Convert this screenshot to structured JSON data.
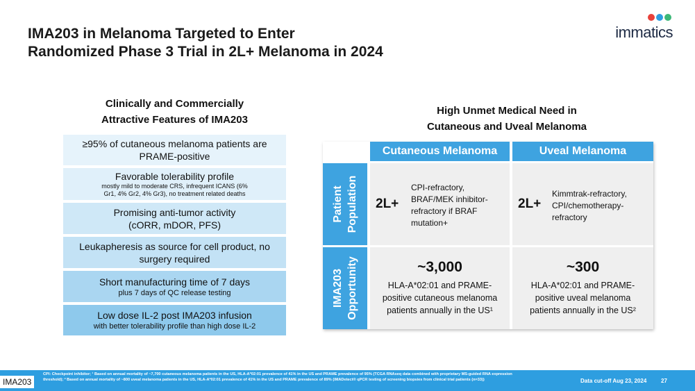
{
  "title": {
    "line1": "IMA203 in Melanoma Targeted to Enter",
    "line2": "Randomized Phase 3 Trial in 2L+ Melanoma in 2024"
  },
  "logo": {
    "text": "immatics",
    "dot_colors": [
      "#e8413b",
      "#2e9ee0",
      "#3cb878"
    ]
  },
  "left": {
    "title_line1": "Clinically and Commercially",
    "title_line2": "Attractive Features of IMA203",
    "features": [
      {
        "main": "≥95% of cutaneous melanoma patients are PRAME-positive",
        "sub": "",
        "bg": "#e6f3fb"
      },
      {
        "main": "Favorable tolerability profile",
        "sub": "mostly mild to moderate CRS, infrequent ICANS (6% Gr1, 4% Gr2, 4% Gr3), no treatment related deaths",
        "bg": "#e0f0fa"
      },
      {
        "main": "Promising anti-tumor activity (cORR, mDOR, PFS)",
        "sub": "",
        "bg": "#cfe8f7"
      },
      {
        "main": "Leukapheresis as source for cell product, no surgery required",
        "sub": "",
        "bg": "#c3e2f5"
      },
      {
        "main": "Short manufacturing time of 7 days",
        "sub": "plus 7 days of QC release testing",
        "bg": "#aad6f1"
      },
      {
        "main": "Low dose IL-2 post IMA203 infusion",
        "sub": "with better tolerability profile than high dose IL-2",
        "bg": "#8ec9ec"
      }
    ]
  },
  "right": {
    "title_line1": "High Unmet Medical Need in",
    "title_line2": "Cutaneous and Uveal Melanoma",
    "col_headers": [
      "Cutaneous Melanoma",
      "Uveal Melanoma"
    ],
    "row_headers": [
      {
        "line1": "Patient",
        "line2": "Population"
      },
      {
        "line1": "IMA203",
        "line2": "Opportunity"
      }
    ],
    "population": [
      {
        "label": "2L+",
        "text": "CPI-refractory, BRAF/MEK inhibitor-refractory if BRAF mutation+"
      },
      {
        "label": "2L+",
        "text": "Kimmtrak-refractory, CPI/chemotherapy-refractory"
      }
    ],
    "opportunity": [
      {
        "number": "~3,000",
        "text": "HLA-A*02:01 and PRAME-positive cutaneous melanoma patients annually in the US¹"
      },
      {
        "number": "~300",
        "text": "HLA-A*02:01 and PRAME-positive uveal melanoma patients annually in the US²"
      }
    ]
  },
  "footer": {
    "tag": "IMA203",
    "note": "CPI: Checkpoint inhibitor; ¹ Based on annual mortality of ~7,700 cutaneous melanoma patients in the US, HLA-A*02:01 prevalence of 41% in the US and PRAME prevalence of 95% (TCGA RNAseq data combined with proprietary MS-guided RNA expression threshold); ² Based on annual mortality of ~800 uveal melanoma patients in the US, HLA-A*02:01 prevalence of 41% in the US and PRAME prevalence of 89% (IMADetect® qPCR testing of screening biopsies from clinical trial patients (n=33))",
    "cutoff": "Data cut-off Aug 23, 2024",
    "page": "27"
  }
}
